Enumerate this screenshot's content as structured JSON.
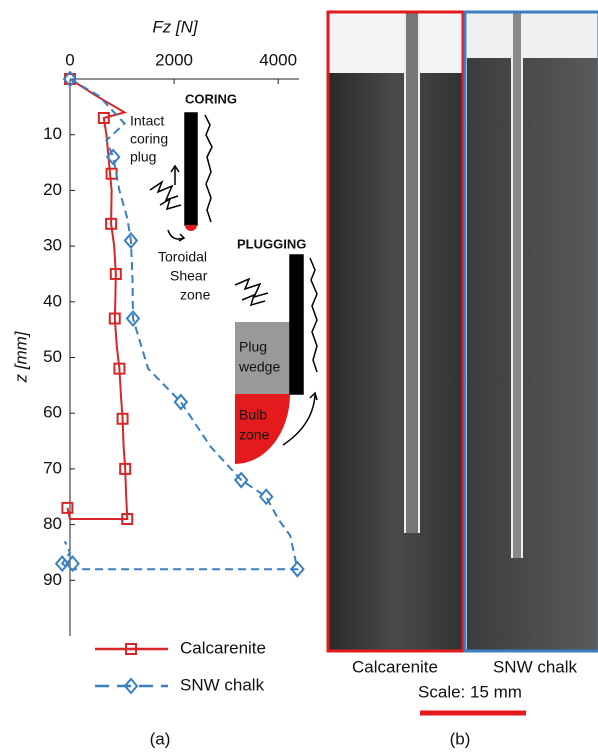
{
  "chart_data": {
    "type": "line",
    "xlabel": "Fz [N]",
    "ylabel": "z [mm]",
    "xlim": [
      0,
      4400
    ],
    "xticks": [
      0,
      2000,
      4000
    ],
    "ylim": [
      0,
      100
    ],
    "yticks": [
      10,
      20,
      30,
      40,
      50,
      60,
      70,
      80,
      90
    ],
    "y_inverted": true,
    "x_axis_position": "top",
    "series": [
      {
        "name": "Calcarenite",
        "color": "#d62728",
        "dash": "solid",
        "marker": "square",
        "x": [
          0,
          500,
          1050,
          650,
          700,
          750,
          800,
          790,
          850,
          880,
          870,
          860,
          900,
          950,
          980,
          1010,
          1030,
          1060,
          1080,
          1100,
          0,
          -50
        ],
        "values": [
          0,
          3,
          6,
          7,
          10,
          15,
          20,
          26,
          30,
          35,
          40,
          43,
          48,
          52,
          57,
          61,
          66,
          70,
          75,
          79,
          79,
          77
        ],
        "marker_x": [
          0,
          650,
          800,
          790,
          880,
          860,
          950,
          1010,
          1060,
          1100,
          -50
        ],
        "marker_values": [
          0,
          7,
          17,
          26,
          35,
          43,
          52,
          61,
          70,
          79,
          77
        ]
      },
      {
        "name": "SNW chalk",
        "color": "#3a7fc1",
        "dash": "dashed",
        "marker": "diamond",
        "x": [
          0,
          550,
          1050,
          700,
          830,
          950,
          1100,
          1170,
          1200,
          1210,
          1500,
          2130,
          2700,
          3290,
          3770,
          4000,
          4230,
          4370,
          2000,
          0,
          -150,
          0,
          -100
        ],
        "values": [
          0,
          3,
          8,
          11,
          14,
          20,
          25,
          29,
          36,
          43,
          52,
          58,
          66,
          72,
          75,
          79,
          82,
          88,
          88,
          88,
          87,
          85,
          83
        ],
        "marker_x": [
          0,
          830,
          1170,
          1210,
          2130,
          3290,
          3770,
          4370,
          50,
          -150
        ],
        "marker_values": [
          0,
          14,
          29,
          43,
          58,
          72,
          75,
          88,
          87,
          87
        ]
      }
    ],
    "annotations": [
      "CORING",
      "Intact",
      "coring",
      "plug",
      "Toroidal",
      "Shear",
      "zone",
      "PLUGGING",
      "Plug",
      "wedge",
      "Bulb",
      "zone"
    ]
  },
  "panels": {
    "a_label": "(a)",
    "b_label": "(b)",
    "image_left": "Calcarenite",
    "image_right": "SNW chalk",
    "scale": "Scale: 15 mm"
  }
}
